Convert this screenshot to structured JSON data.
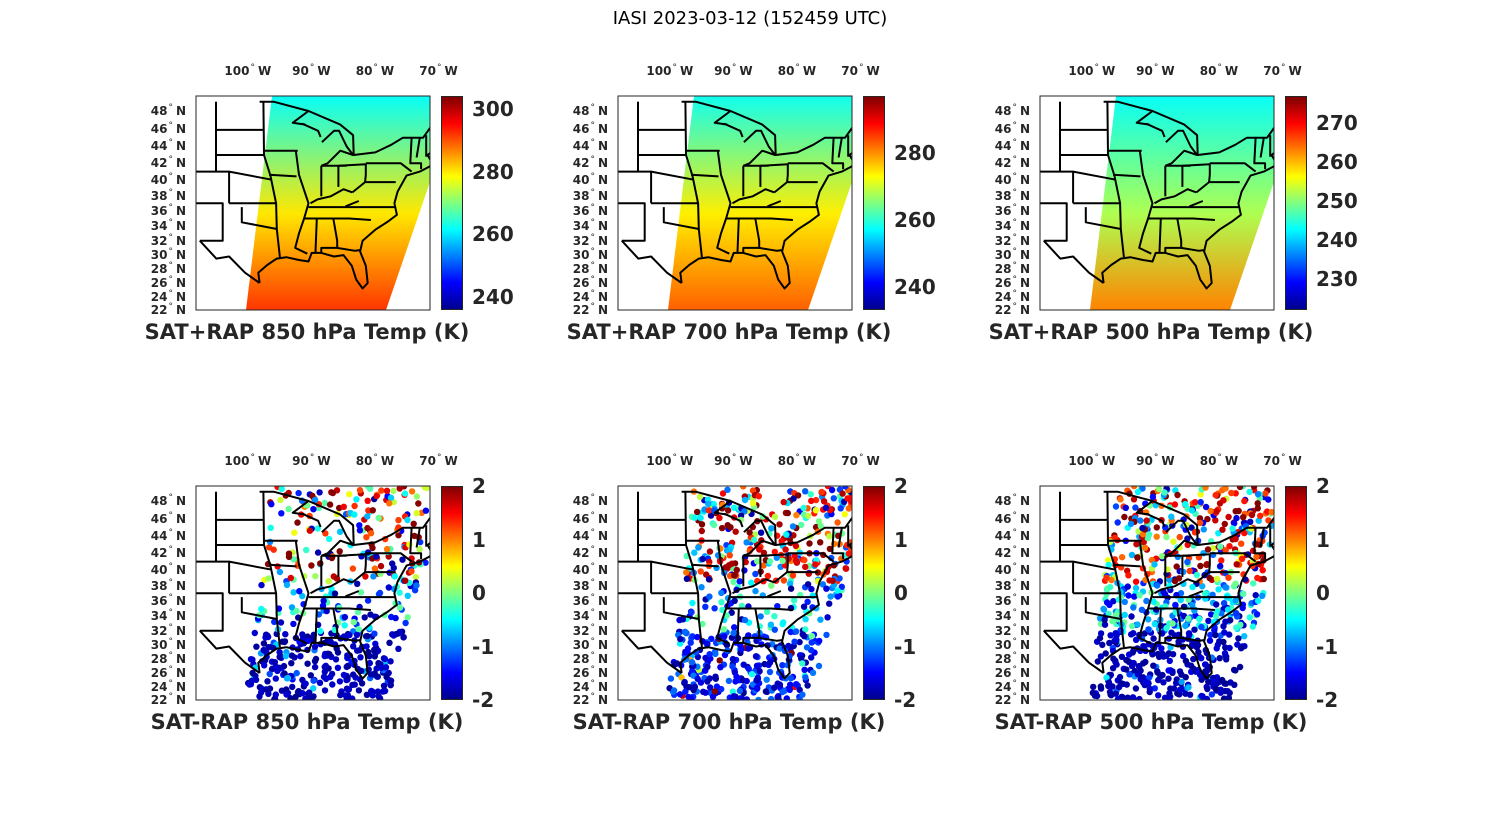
{
  "figure_title": "IASI 2023-03-12 (152459 UTC)",
  "lon_labels": [
    {
      "value": -100,
      "text": "100",
      "hemi": "W"
    },
    {
      "value": -90,
      "text": "90",
      "hemi": "W"
    },
    {
      "value": -80,
      "text": "80",
      "hemi": "W"
    },
    {
      "value": -70,
      "text": "70",
      "hemi": "W"
    }
  ],
  "lat_labels": [
    {
      "value": 48,
      "text": "48",
      "hemi": "N"
    },
    {
      "value": 46,
      "text": "46",
      "hemi": "N"
    },
    {
      "value": 44,
      "text": "44",
      "hemi": "N"
    },
    {
      "value": 42,
      "text": "42",
      "hemi": "N"
    },
    {
      "value": 40,
      "text": "40",
      "hemi": "N"
    },
    {
      "value": 38,
      "text": "38",
      "hemi": "N"
    },
    {
      "value": 36,
      "text": "36",
      "hemi": "N"
    },
    {
      "value": 34,
      "text": "34",
      "hemi": "N"
    },
    {
      "value": 32,
      "text": "32",
      "hemi": "N"
    },
    {
      "value": 30,
      "text": "30",
      "hemi": "N"
    },
    {
      "value": 28,
      "text": "28",
      "hemi": "N"
    },
    {
      "value": 26,
      "text": "26",
      "hemi": "N"
    },
    {
      "value": 24,
      "text": "24",
      "hemi": "N"
    },
    {
      "value": 22,
      "text": "22",
      "hemi": "N"
    }
  ],
  "colormap": "jet",
  "colormap_colors": [
    "#00008f",
    "#0000ff",
    "#00ffff",
    "#ffff00",
    "#ff0000",
    "#800000"
  ],
  "panels": [
    {
      "title": "SAT+RAP 850 hPa Temp (K)",
      "type": "analysis",
      "clim": [
        236,
        304
      ],
      "ticks": [
        {
          "value": 240,
          "text": "240"
        },
        {
          "value": 260,
          "text": "260"
        },
        {
          "value": 280,
          "text": "280"
        },
        {
          "value": 300,
          "text": "300"
        }
      ],
      "field_north": 262,
      "field_mid": 280,
      "field_south": 292
    },
    {
      "title": "SAT+RAP 700 hPa Temp (K)",
      "type": "analysis",
      "clim": [
        233,
        297
      ],
      "ticks": [
        {
          "value": 240,
          "text": "240"
        },
        {
          "value": 260,
          "text": "260"
        },
        {
          "value": 280,
          "text": "280"
        }
      ],
      "field_north": 258,
      "field_mid": 274,
      "field_south": 283
    },
    {
      "title": "SAT+RAP 500 hPa Temp (K)",
      "type": "analysis",
      "clim": [
        222,
        277
      ],
      "ticks": [
        {
          "value": 230,
          "text": "230"
        },
        {
          "value": 240,
          "text": "240"
        },
        {
          "value": 250,
          "text": "250"
        },
        {
          "value": 260,
          "text": "260"
        },
        {
          "value": 270,
          "text": "270"
        }
      ],
      "field_north": 243,
      "field_mid": 252,
      "field_south": 263
    },
    {
      "title": "SAT-RAP 850 hPa Temp (K)",
      "type": "difference",
      "clim": [
        -2,
        2
      ],
      "ticks": [
        {
          "value": -2,
          "text": "-2"
        },
        {
          "value": -1,
          "text": "-1"
        },
        {
          "value": 0,
          "text": "0"
        },
        {
          "value": 1,
          "text": "1"
        },
        {
          "value": 2,
          "text": "2"
        }
      ]
    },
    {
      "title": "SAT-RAP 700 hPa Temp (K)",
      "type": "difference",
      "clim": [
        -2,
        2
      ],
      "ticks": [
        {
          "value": -2,
          "text": "-2"
        },
        {
          "value": -1,
          "text": "-1"
        },
        {
          "value": 0,
          "text": "0"
        },
        {
          "value": 1,
          "text": "1"
        },
        {
          "value": 2,
          "text": "2"
        }
      ]
    },
    {
      "title": "SAT-RAP 500 hPa Temp (K)",
      "type": "difference",
      "clim": [
        -2,
        2
      ],
      "ticks": [
        {
          "value": -2,
          "text": "-2"
        },
        {
          "value": -1,
          "text": "-1"
        },
        {
          "value": 0,
          "text": "0"
        },
        {
          "value": 1,
          "text": "1"
        },
        {
          "value": 2,
          "text": "2"
        }
      ]
    }
  ]
}
